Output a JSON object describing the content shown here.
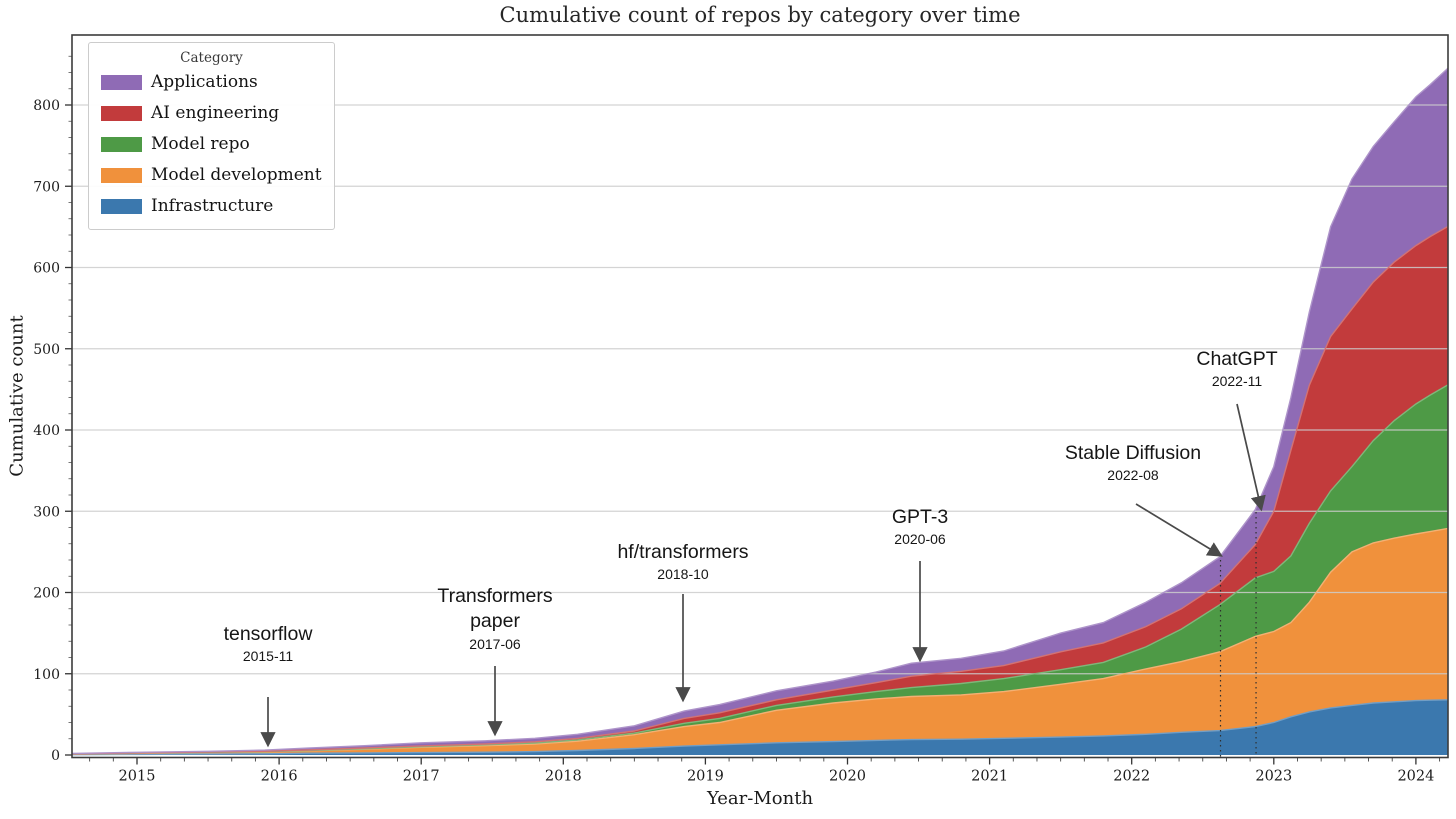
{
  "title": "Cumulative count of repos by category over time",
  "axes": {
    "x_label": "Year-Month",
    "y_label": "Cumulative count",
    "x_ticks": [
      2015,
      2016,
      2017,
      2018,
      2019,
      2020,
      2021,
      2022,
      2023,
      2024
    ],
    "y_ticks": [
      0,
      100,
      200,
      300,
      400,
      500,
      600,
      700,
      800
    ]
  },
  "legend": {
    "title": "Category",
    "items": [
      {
        "label": "Applications",
        "color": "#8f6bb5"
      },
      {
        "label": "AI engineering",
        "color": "#c23b3c"
      },
      {
        "label": "Model repo",
        "color": "#4e9a46"
      },
      {
        "label": "Model development",
        "color": "#f0913c"
      },
      {
        "label": "Infrastructure",
        "color": "#3b78ae"
      }
    ]
  },
  "annotations": [
    {
      "label": "tensorflow",
      "date": "2015-11"
    },
    {
      "label": "Transformers paper",
      "date": "2017-06"
    },
    {
      "label": "hf/transformers",
      "date": "2018-10"
    },
    {
      "label": "GPT-3",
      "date": "2020-06"
    },
    {
      "label": "Stable Diffusion",
      "date": "2022-08"
    },
    {
      "label": "ChatGPT",
      "date": "2022-11"
    }
  ],
  "chart_data": {
    "type": "area",
    "stacked": true,
    "title": "Cumulative count of repos by category over time",
    "xlabel": "Year-Month",
    "ylabel": "Cumulative count",
    "xlim": [
      2014.54,
      2024.23
    ],
    "ylim": [
      0,
      886
    ],
    "grid": true,
    "legend_position": "upper-left",
    "x": [
      2014.54,
      2015.0,
      2015.5,
      2015.9,
      2016.2,
      2016.6,
      2017.0,
      2017.45,
      2017.8,
      2018.1,
      2018.5,
      2018.85,
      2019.1,
      2019.5,
      2019.9,
      2020.2,
      2020.45,
      2020.8,
      2021.1,
      2021.5,
      2021.8,
      2022.1,
      2022.35,
      2022.62,
      2022.87,
      2023.0,
      2023.12,
      2023.25,
      2023.4,
      2023.55,
      2023.7,
      2023.85,
      2024.0,
      2024.1,
      2024.23
    ],
    "series": [
      {
        "name": "Infrastructure",
        "color": "#3b78ae",
        "values": [
          0.4,
          0.8,
          1.2,
          1.5,
          2.2,
          2.6,
          3,
          3.5,
          4.2,
          5.5,
          8,
          11,
          12.5,
          15,
          16.5,
          18,
          19,
          19.5,
          20.5,
          22,
          23.5,
          25.5,
          28,
          30,
          35,
          40,
          47,
          53,
          58,
          61,
          64,
          65.5,
          67,
          67.5,
          68
        ]
      },
      {
        "name": "Model development",
        "color": "#f0913c",
        "values": [
          0.6,
          1.2,
          1.6,
          2.1,
          2.8,
          4.4,
          6.5,
          8,
          9.3,
          11.5,
          17,
          24,
          27.5,
          40,
          47.5,
          51,
          53,
          54.5,
          57.5,
          65,
          70.5,
          80.5,
          87,
          97,
          111,
          112,
          116,
          135,
          167,
          189,
          197,
          201.5,
          205,
          207.5,
          211
        ]
      },
      {
        "name": "Model repo",
        "color": "#4e9a46",
        "values": [
          0.2,
          0.3,
          0.4,
          0.5,
          0.6,
          0.6,
          0.7,
          1,
          1.3,
          1.6,
          2,
          4,
          5,
          6,
          7.5,
          9,
          11,
          14,
          16,
          18,
          20,
          27,
          40,
          58,
          72,
          74,
          82,
          97,
          100,
          105,
          126,
          145,
          160,
          168,
          177
        ]
      },
      {
        "name": "AI engineering",
        "color": "#c23b3c",
        "values": [
          0.2,
          0.3,
          0.4,
          0.5,
          0.6,
          1,
          1,
          1.1,
          1.4,
          1.8,
          2.5,
          6,
          7,
          7,
          8.5,
          11,
          14,
          15,
          16,
          22,
          24,
          25,
          25,
          26,
          41,
          74,
          130,
          170,
          190,
          194,
          195,
          195,
          195,
          195,
          195
        ]
      },
      {
        "name": "Applications",
        "color": "#8f6bb5",
        "values": [
          0.4,
          0.7,
          0.9,
          1.4,
          2.3,
          2.9,
          3.8,
          3.9,
          4.3,
          5.1,
          6.5,
          9,
          10,
          11,
          11,
          13,
          16,
          16,
          18,
          23,
          25,
          30,
          32,
          33,
          43,
          55,
          65,
          90,
          135,
          160,
          167,
          173,
          183,
          187,
          195
        ]
      }
    ],
    "events": [
      {
        "label": "Stable Diffusion",
        "date": "2022-08",
        "x": 2022.625
      },
      {
        "label": "ChatGPT",
        "date": "2022-11",
        "x": 2022.875
      }
    ]
  }
}
